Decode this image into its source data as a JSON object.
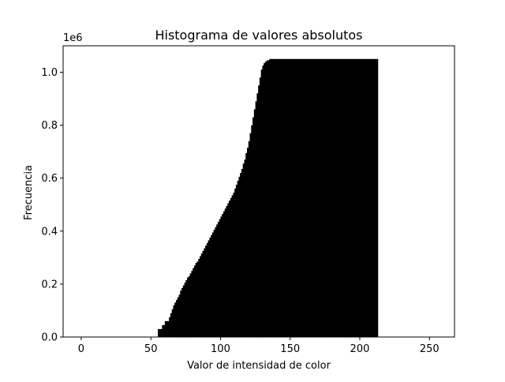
{
  "chart_data": {
    "type": "bar",
    "title": "Histograma de valores absolutos",
    "xlabel": "Valor de intensidad de color",
    "ylabel": "Frecuencia",
    "y_offset_text": "1e6",
    "xlim": [
      -13,
      268
    ],
    "ylim": [
      0,
      1.1
    ],
    "xticks": [
      0,
      50,
      100,
      150,
      200,
      250
    ],
    "yticks": [
      0.0,
      0.2,
      0.4,
      0.6,
      0.8,
      1.0
    ],
    "ytick_labels": [
      "0.0",
      "0.2",
      "0.4",
      "0.6",
      "0.8",
      "1.0"
    ],
    "bar_color": "#000000",
    "bin_start": 0,
    "bin_width": 1,
    "grid": false,
    "values": [
      0,
      0,
      0,
      0,
      0,
      0,
      0,
      0,
      0,
      0,
      0,
      0,
      0,
      0,
      0,
      0,
      0,
      0,
      0,
      0,
      0,
      0,
      0,
      0,
      0,
      0,
      0,
      0,
      0,
      0,
      0,
      0,
      0,
      0,
      0,
      0,
      0,
      0,
      0,
      0,
      0,
      0,
      0,
      0,
      0,
      0,
      0,
      0,
      0,
      0,
      0,
      0,
      0,
      0,
      0,
      0.03,
      0.03,
      0.03,
      0.045,
      0.045,
      0.06,
      0.06,
      0.06,
      0.075,
      0.09,
      0.105,
      0.12,
      0.13,
      0.14,
      0.15,
      0.16,
      0.175,
      0.185,
      0.195,
      0.205,
      0.215,
      0.225,
      0.23,
      0.24,
      0.25,
      0.26,
      0.27,
      0.28,
      0.285,
      0.295,
      0.305,
      0.315,
      0.325,
      0.335,
      0.345,
      0.355,
      0.365,
      0.375,
      0.385,
      0.395,
      0.405,
      0.415,
      0.425,
      0.435,
      0.445,
      0.455,
      0.465,
      0.475,
      0.485,
      0.495,
      0.505,
      0.515,
      0.525,
      0.535,
      0.545,
      0.56,
      0.575,
      0.59,
      0.605,
      0.62,
      0.635,
      0.655,
      0.67,
      0.695,
      0.715,
      0.74,
      0.77,
      0.8,
      0.83,
      0.86,
      0.89,
      0.92,
      0.95,
      0.98,
      1.01,
      1.025,
      1.035,
      1.04,
      1.045,
      1.045,
      1.05,
      1.05,
      1.05,
      1.05,
      1.05,
      1.05,
      1.05,
      1.05,
      1.05,
      1.05,
      1.05,
      1.05,
      1.05,
      1.05,
      1.05,
      1.05,
      1.05,
      1.05,
      1.05,
      1.05,
      1.05,
      1.05,
      1.05,
      1.05,
      1.05,
      1.05,
      1.05,
      1.05,
      1.05,
      1.05,
      1.05,
      1.05,
      1.05,
      1.05,
      1.05,
      1.05,
      1.05,
      1.05,
      1.05,
      1.05,
      1.05,
      1.05,
      1.05,
      1.05,
      1.05,
      1.05,
      1.05,
      1.05,
      1.05,
      1.05,
      1.05,
      1.05,
      1.05,
      1.05,
      1.05,
      1.05,
      1.05,
      1.05,
      1.05,
      1.05,
      1.05,
      1.05,
      1.05,
      1.05,
      1.05,
      1.05,
      1.05,
      1.05,
      1.05,
      1.05,
      1.05,
      1.05,
      1.05,
      1.05,
      1.05,
      1.05,
      1.05,
      1.05
    ]
  }
}
